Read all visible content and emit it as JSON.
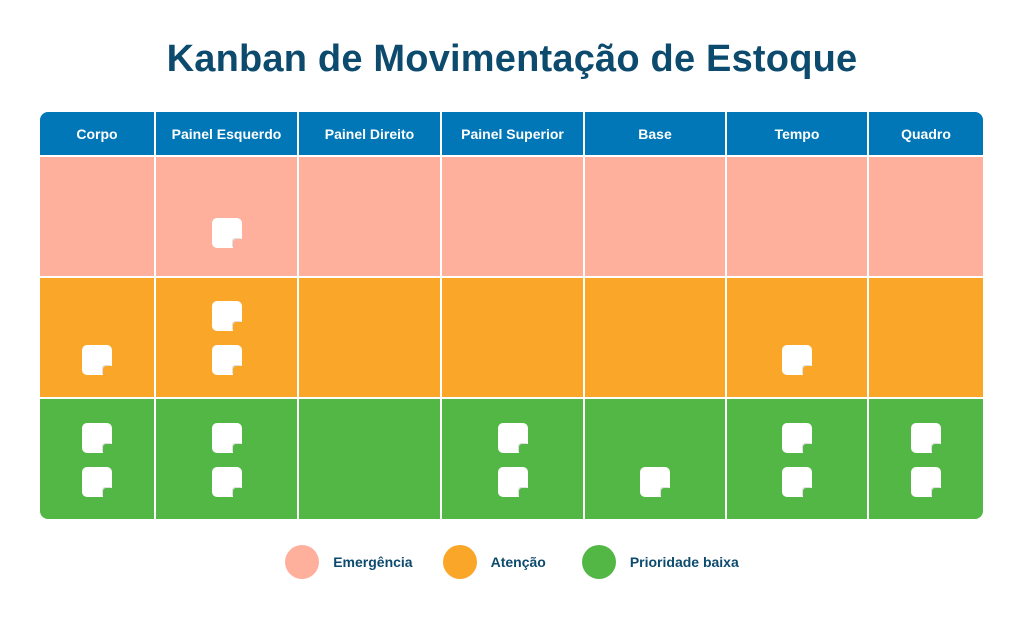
{
  "title": "Kanban de Movimentação de Estoque",
  "columns": [
    "Corpo",
    "Painel Esquerdo",
    "Painel Direito",
    "Painel Superior",
    "Base",
    "Tempo",
    "Quadro"
  ],
  "rows": [
    {
      "label": "Emergência",
      "color": "#ffb09c",
      "cards": [
        0,
        1,
        0,
        0,
        0,
        0,
        0
      ]
    },
    {
      "label": "Atenção",
      "color": "#faa629",
      "cards": [
        1,
        2,
        0,
        0,
        0,
        1,
        0
      ]
    },
    {
      "label": "Prioridade baixa",
      "color": "#52b745",
      "cards": [
        2,
        2,
        0,
        2,
        1,
        2,
        2
      ]
    }
  ],
  "header_color": "#0177b8",
  "card_icon": "sticky-note-icon"
}
